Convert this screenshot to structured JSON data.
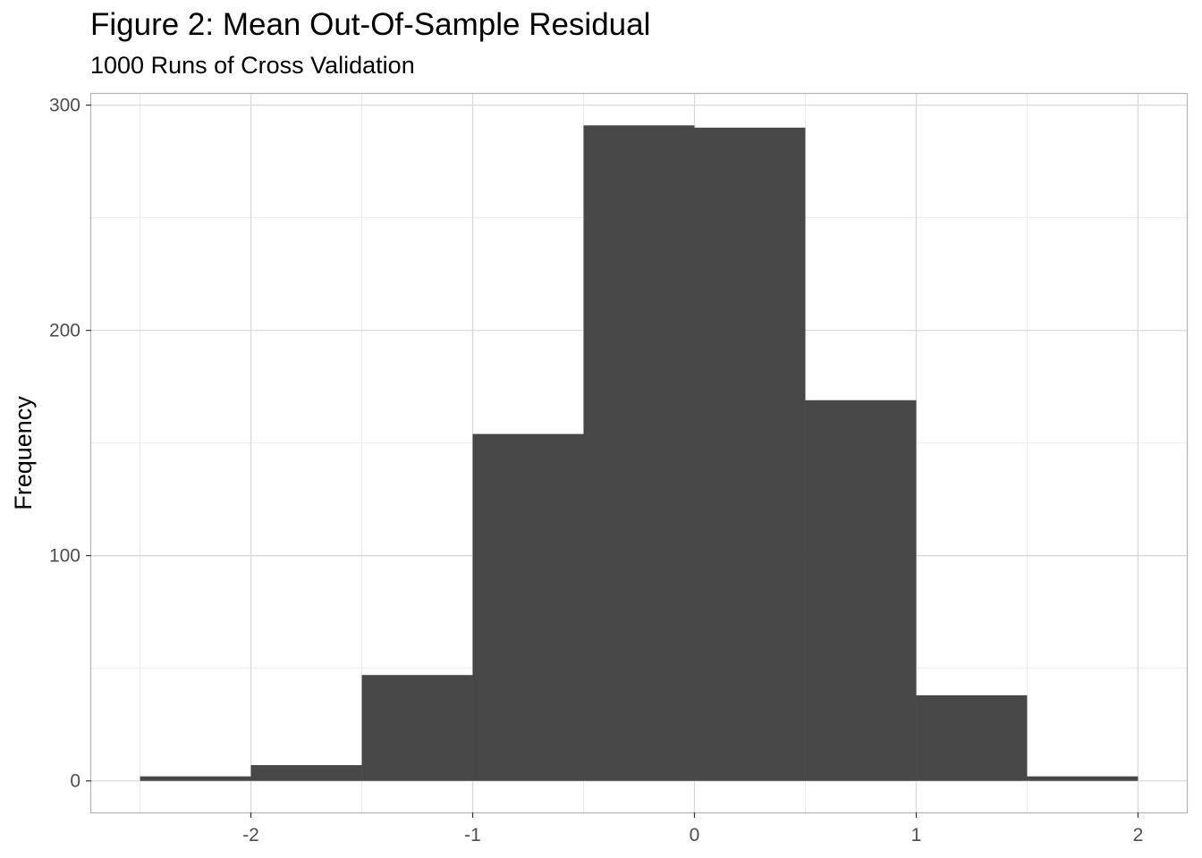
{
  "chart_data": {
    "type": "bar",
    "title": "Figure 2: Mean Out-Of-Sample Residual",
    "subtitle": "1000 Runs of Cross Validation",
    "xlabel": "",
    "ylabel": "Frequency",
    "xlim": [
      -2.72,
      2.22
    ],
    "ylim": [
      -14,
      305
    ],
    "x_ticks": [
      "-2",
      "-1",
      "0",
      "1",
      "2"
    ],
    "x_tick_values": [
      -2,
      -1,
      0,
      1,
      2
    ],
    "y_ticks": [
      "0",
      "100",
      "200",
      "300"
    ],
    "y_tick_values": [
      0,
      100,
      200,
      300
    ],
    "bin_width": 0.5,
    "bins": [
      {
        "start": -2.5,
        "end": -2.0,
        "value": 2
      },
      {
        "start": -2.0,
        "end": -1.5,
        "value": 7
      },
      {
        "start": -1.5,
        "end": -1.0,
        "value": 47
      },
      {
        "start": -1.0,
        "end": -0.5,
        "value": 154
      },
      {
        "start": -0.5,
        "end": 0.0,
        "value": 291
      },
      {
        "start": 0.0,
        "end": 0.5,
        "value": 290
      },
      {
        "start": 0.5,
        "end": 1.0,
        "value": 169
      },
      {
        "start": 1.0,
        "end": 1.5,
        "value": 38
      },
      {
        "start": 1.5,
        "end": 2.0,
        "value": 2
      }
    ],
    "grid": true,
    "colors": {
      "bar": "#474747",
      "grid_major": "#d9d9d9",
      "grid_minor": "#ebebeb",
      "panel_border": "#b3b3b3",
      "tick_label": "#4d4d4d"
    }
  }
}
